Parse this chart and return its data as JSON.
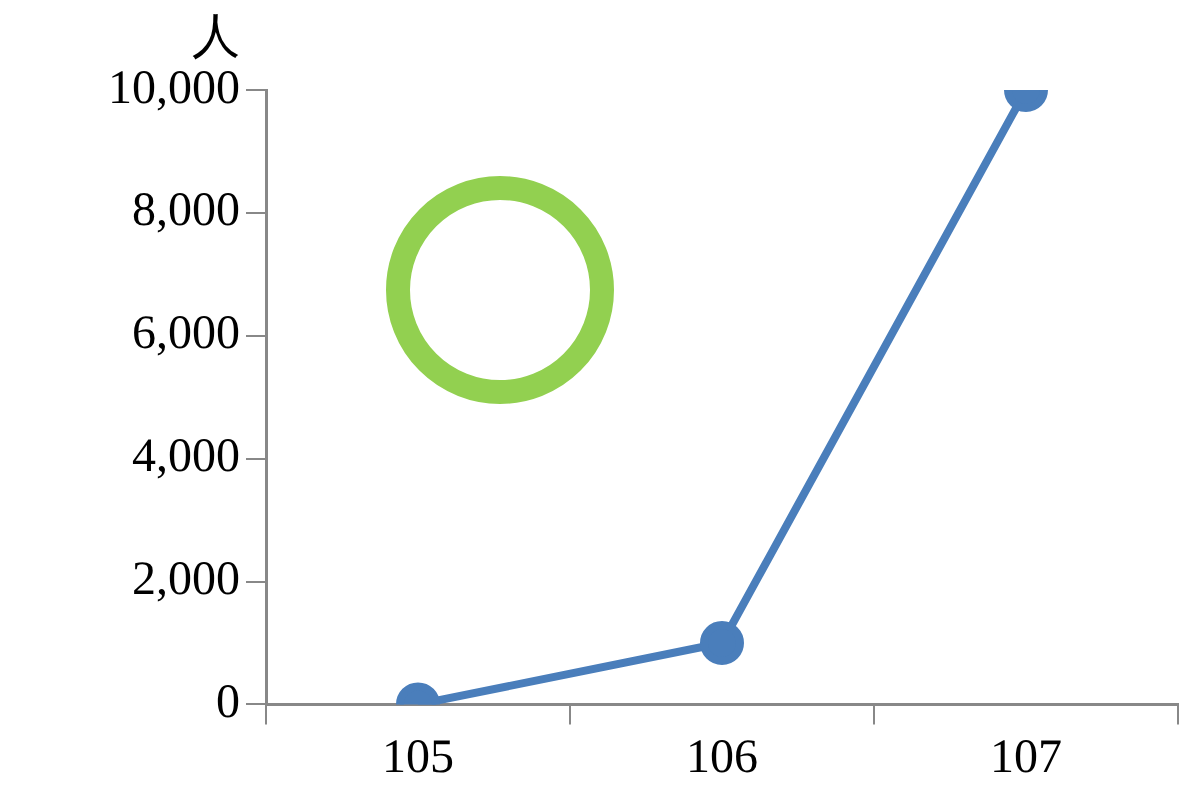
{
  "chart_data": {
    "type": "line",
    "ylabel": "人",
    "categories": [
      "105",
      "106",
      "107"
    ],
    "series": [
      {
        "color": "#4a7ebb",
        "values": [
          0,
          1000,
          10000
        ]
      }
    ],
    "ylim": [
      0,
      10000
    ],
    "yticks": [
      0,
      {
        "value": 2000,
        "label": "2,000"
      },
      {
        "value": 4000,
        "label": "4,000"
      },
      {
        "value": 6000,
        "label": "6,000"
      },
      {
        "value": 8000,
        "label": "8,000"
      },
      {
        "value": 10000,
        "label": "10,000"
      }
    ],
    "grid": false,
    "legend": false,
    "marker": "circle",
    "line_style": "solid"
  }
}
